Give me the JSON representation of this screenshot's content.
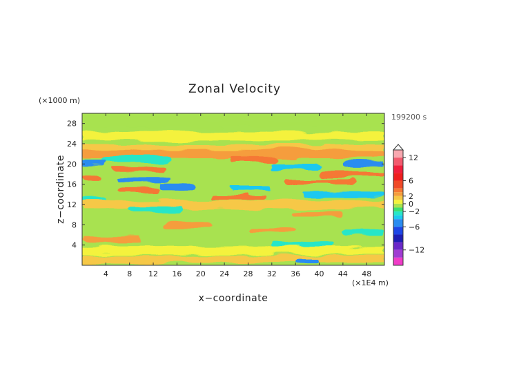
{
  "chart_data": {
    "type": "heatmap",
    "title": "Zonal Velocity",
    "xlabel": "x−coordinate",
    "ylabel": "z−coordinate",
    "x_unit": "(×1E4 m)",
    "y_unit": "(×1000 m)",
    "time_label": "199200 s",
    "xlim": [
      0,
      51
    ],
    "ylim": [
      0,
      30
    ],
    "x_ticks": [
      4,
      8,
      12,
      16,
      20,
      24,
      28,
      32,
      36,
      40,
      44,
      48
    ],
    "y_ticks": [
      4,
      8,
      12,
      16,
      20,
      24,
      28
    ],
    "colorbar": {
      "levels": [
        {
          "min": 12,
          "max": 14,
          "color": "#f8a8b0"
        },
        {
          "min": 10,
          "max": 12,
          "color": "#f25a6e"
        },
        {
          "min": 8,
          "max": 10,
          "color": "#f01e3c"
        },
        {
          "min": 6,
          "max": 8,
          "color": "#ee1e1e"
        },
        {
          "min": 4,
          "max": 6,
          "color": "#f04a28"
        },
        {
          "min": 3,
          "max": 4,
          "color": "#f57834"
        },
        {
          "min": 2,
          "max": 3,
          "color": "#f59d3c"
        },
        {
          "min": 1,
          "max": 2,
          "color": "#f6c846"
        },
        {
          "min": 0,
          "max": 1,
          "color": "#f4f23c"
        },
        {
          "min": -1,
          "max": 0,
          "color": "#a8e250"
        },
        {
          "min": -2,
          "max": -1,
          "color": "#3ee070"
        },
        {
          "min": -3,
          "max": -2,
          "color": "#28e6c8"
        },
        {
          "min": -4,
          "max": -3,
          "color": "#1ec8f0"
        },
        {
          "min": -6,
          "max": -4,
          "color": "#2a8cf0"
        },
        {
          "min": -8,
          "max": -6,
          "color": "#1e46e6"
        },
        {
          "min": -10,
          "max": -8,
          "color": "#1e1eb4"
        },
        {
          "min": -12,
          "max": -10,
          "color": "#6a28c8"
        },
        {
          "min": -14,
          "max": -12,
          "color": "#a03cd2"
        },
        {
          "min": -16,
          "max": -14,
          "color": "#f03cc8"
        }
      ],
      "tick_labels": [
        "12",
        "6",
        "2",
        "0",
        "−2",
        "−6",
        "−12"
      ],
      "tick_values": [
        12,
        6,
        2,
        0,
        -2,
        -6,
        -12
      ]
    },
    "bands": [
      {
        "z": 28.0,
        "x_start": 0,
        "x_end": 51,
        "value": -0.5
      },
      {
        "z": 25.5,
        "x_start": 0,
        "x_end": 51,
        "value": 0.5
      },
      {
        "z": 23.0,
        "x_start": 0,
        "x_end": 51,
        "value": 1.5
      },
      {
        "z": 22.0,
        "x_start": 0,
        "x_end": 51,
        "value": 2.5
      },
      {
        "z": 21.0,
        "x_start": 3,
        "x_end": 15,
        "value": -3.0
      },
      {
        "z": 20.2,
        "x_start": 0,
        "x_end": 4,
        "value": -4.5
      },
      {
        "z": 19.0,
        "x_start": 5,
        "x_end": 14,
        "value": 3.5
      },
      {
        "z": 20.8,
        "x_start": 25,
        "x_end": 33,
        "value": 3.5
      },
      {
        "z": 19.5,
        "x_start": 32,
        "x_end": 40,
        "value": -3.5
      },
      {
        "z": 20.0,
        "x_start": 44,
        "x_end": 51,
        "value": -4.5
      },
      {
        "z": 18.0,
        "x_start": 40,
        "x_end": 51,
        "value": 3.0
      },
      {
        "z": 17.0,
        "x_start": 0,
        "x_end": 3,
        "value": 3.0
      },
      {
        "z": 16.8,
        "x_start": 6,
        "x_end": 15,
        "value": -4.5
      },
      {
        "z": 16.5,
        "x_start": 34,
        "x_end": 46,
        "value": 3.0
      },
      {
        "z": 15.5,
        "x_start": 13,
        "x_end": 19,
        "value": -4.5
      },
      {
        "z": 15.2,
        "x_start": 25,
        "x_end": 32,
        "value": -3.5
      },
      {
        "z": 14.8,
        "x_start": 6,
        "x_end": 13,
        "value": 3.5
      },
      {
        "z": 14.0,
        "x_start": 37,
        "x_end": 51,
        "value": -3.5
      },
      {
        "z": 13.5,
        "x_start": 22,
        "x_end": 31,
        "value": 3.5
      },
      {
        "z": 13.0,
        "x_start": 0,
        "x_end": 4,
        "value": -3.0
      },
      {
        "z": 12.0,
        "x_start": 0,
        "x_end": 51,
        "value": 1.0
      },
      {
        "z": 11.0,
        "x_start": 8,
        "x_end": 17,
        "value": -2.5
      },
      {
        "z": 10.0,
        "x_start": 35,
        "x_end": 44,
        "value": 2.5
      },
      {
        "z": 8.0,
        "x_start": 14,
        "x_end": 22,
        "value": 2.5
      },
      {
        "z": 7.0,
        "x_start": 28,
        "x_end": 36,
        "value": 2.5
      },
      {
        "z": 6.5,
        "x_start": 44,
        "x_end": 51,
        "value": -2.5
      },
      {
        "z": 5.0,
        "x_start": 0,
        "x_end": 10,
        "value": 2.5
      },
      {
        "z": 4.0,
        "x_start": 32,
        "x_end": 42,
        "value": -3.0
      },
      {
        "z": 3.0,
        "x_start": 0,
        "x_end": 51,
        "value": 0.5
      },
      {
        "z": 1.2,
        "x_start": 0,
        "x_end": 51,
        "value": 1.5
      },
      {
        "z": 0.6,
        "x_start": 36,
        "x_end": 40,
        "value": -5.0
      }
    ]
  }
}
